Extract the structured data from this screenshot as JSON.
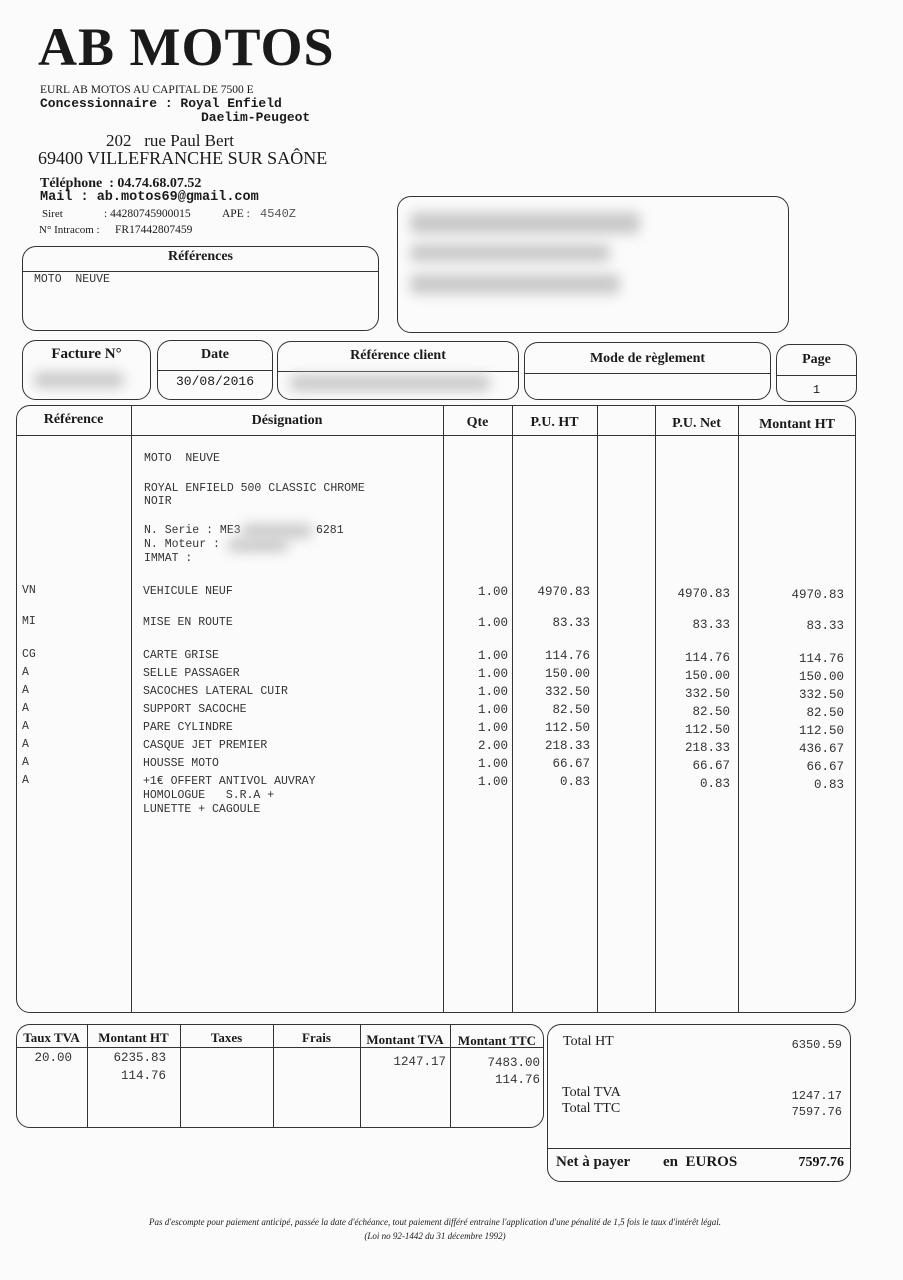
{
  "company": {
    "name": "AB MOTOS",
    "legal": "EURL AB MOTOS  AU CAPITAL DE 7500 E",
    "dealer_line1": "Concessionnaire : Royal Enfield",
    "dealer_line2": "Daelim-Peugeot",
    "street": "202   rue Paul Bert",
    "city": "69400 VILLEFRANCHE SUR SAÔNE",
    "phone": "Téléphone  : 04.74.68.07.52",
    "mail": "Mail : ab.motos69@gmail.com",
    "siret_label": "Siret",
    "siret": ": 44280745900015",
    "ape_label": "APE :",
    "ape": "4540Z",
    "intracom_label": "N° Intracom :",
    "intracom": "FR17442807459"
  },
  "references": {
    "title": "Références",
    "value": "MOTO  NEUVE"
  },
  "header": {
    "invoice_label": "Facture N°",
    "date_label": "Date",
    "date": "30/08/2016",
    "client_ref_label": "Référence client",
    "payment_label": "Mode de règlement",
    "page_label": "Page",
    "page": "1"
  },
  "table": {
    "columns": [
      "Référence",
      "Désignation",
      "Qte",
      "P.U. HT",
      "",
      "P.U. Net",
      "Montant HT"
    ],
    "description": {
      "line1": "MOTO  NEUVE",
      "line2": "ROYAL ENFIELD 500 CLASSIC CHROME",
      "line3": "NOIR",
      "serie_label": "N. Serie : ME3",
      "serie_end": "6281",
      "moteur_label": "N. Moteur :",
      "immat_label": "IMMAT :"
    },
    "rows": [
      {
        "ref": "VN",
        "designation": "VEHICULE NEUF",
        "qte": "1.00",
        "pu_ht": "4970.83",
        "pu_net": "4970.83",
        "montant": "4970.83"
      },
      {
        "ref": "MI",
        "designation": "MISE EN ROUTE",
        "qte": "1.00",
        "pu_ht": "83.33",
        "pu_net": "83.33",
        "montant": "83.33"
      },
      {
        "ref": "CG",
        "designation": "CARTE GRISE",
        "qte": "1.00",
        "pu_ht": "114.76",
        "pu_net": "114.76",
        "montant": "114.76"
      },
      {
        "ref": "A",
        "designation": "SELLE PASSAGER",
        "qte": "1.00",
        "pu_ht": "150.00",
        "pu_net": "150.00",
        "montant": "150.00"
      },
      {
        "ref": "A",
        "designation": "SACOCHES LATERAL CUIR",
        "qte": "1.00",
        "pu_ht": "332.50",
        "pu_net": "332.50",
        "montant": "332.50"
      },
      {
        "ref": "A",
        "designation": "SUPPORT SACOCHE",
        "qte": "1.00",
        "pu_ht": "82.50",
        "pu_net": "82.50",
        "montant": "82.50"
      },
      {
        "ref": "A",
        "designation": "PARE CYLINDRE",
        "qte": "1.00",
        "pu_ht": "112.50",
        "pu_net": "112.50",
        "montant": "112.50"
      },
      {
        "ref": "A",
        "designation": "CASQUE JET PREMIER",
        "qte": "2.00",
        "pu_ht": "218.33",
        "pu_net": "218.33",
        "montant": "436.67"
      },
      {
        "ref": "A",
        "designation": "HOUSSE MOTO",
        "qte": "1.00",
        "pu_ht": "66.67",
        "pu_net": "66.67",
        "montant": "66.67"
      },
      {
        "ref": "A",
        "designation": "+1€ OFFERT ANTIVOL AUVRAY\nHOMOLOGUE   S.R.A +\nLUNETTE + CAGOULE",
        "qte": "1.00",
        "pu_ht": "0.83",
        "pu_net": "0.83",
        "montant": "0.83"
      }
    ]
  },
  "tax": {
    "columns": [
      "Taux TVA",
      "Montant HT",
      "Taxes",
      "Frais",
      "Montant TVA",
      "Montant TTC"
    ],
    "rate": "20.00",
    "ht1": "6235.83",
    "ht2": "114.76",
    "tva": "1247.17",
    "ttc1": "7483.00",
    "ttc2": "114.76"
  },
  "totals": {
    "total_ht_label": "Total HT",
    "total_ht": "6350.59",
    "total_tva_label": "Total TVA",
    "total_tva": "1247.17",
    "total_ttc_label": "Total TTC",
    "total_ttc": "7597.76",
    "net_label": "Net à payer",
    "currency_label": "en  EUROS",
    "net": "7597.76"
  },
  "footer": {
    "line1": "Pas d'escompte pour paiement anticipé, passée la date d'échéance, tout paiement différé entraine l'application d'une pénalité de 1,5 fois le taux d'intérêt légal.",
    "line2": "(Loi no 92-1442 du 31 décembre 1992)"
  }
}
